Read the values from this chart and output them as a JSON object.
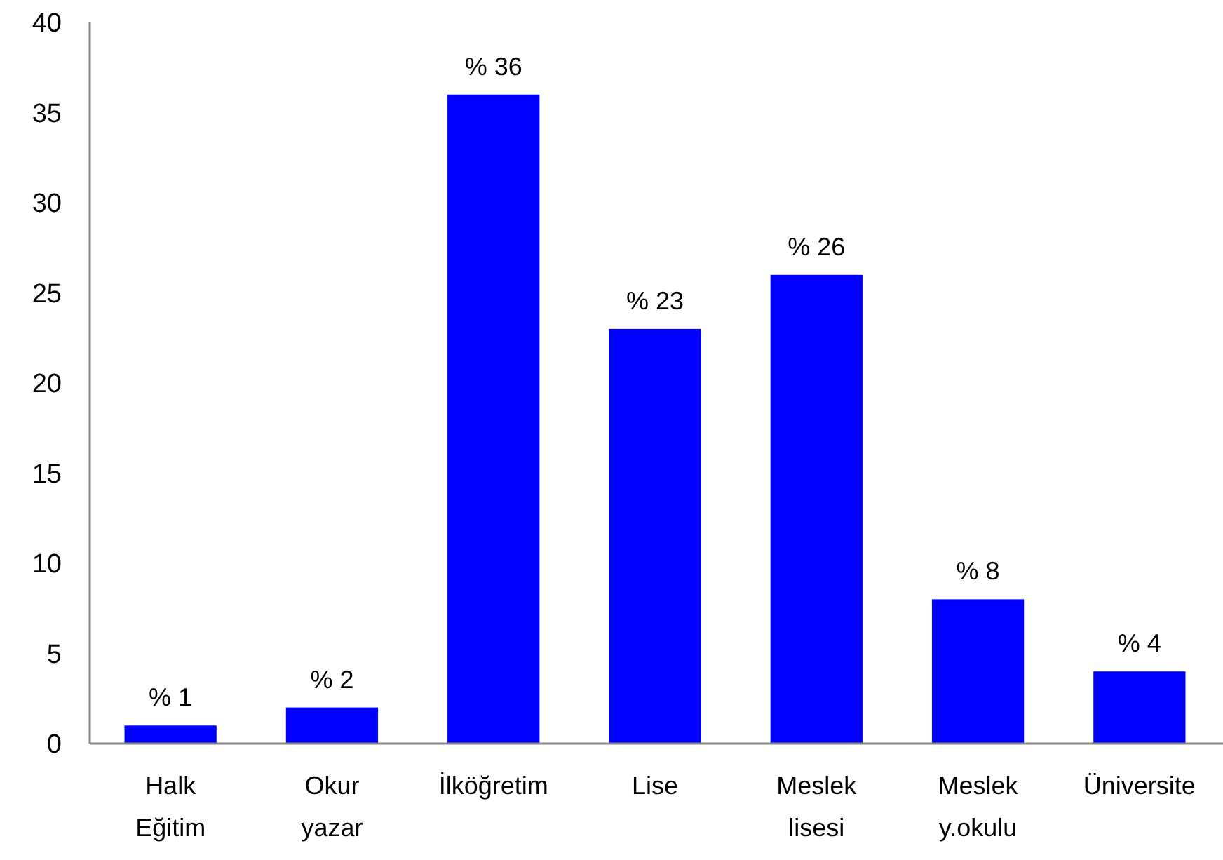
{
  "chart_data": {
    "type": "bar",
    "categories": [
      "Halk Eğitim",
      "Okur yazar",
      "İlköğretim",
      "Lise",
      "Meslek lisesi",
      "Meslek y.okulu",
      "Üniversite"
    ],
    "values": [
      1,
      2,
      36,
      23,
      26,
      8,
      4
    ],
    "color": "#0000ff",
    "value_labels": [
      "% 1",
      "% 2",
      "% 36",
      "% 23",
      "% 26",
      "% 8",
      "% 4"
    ],
    "ylim": [
      0,
      40
    ],
    "yticks": [
      0,
      5,
      10,
      15,
      20,
      25,
      30,
      35,
      40
    ]
  }
}
